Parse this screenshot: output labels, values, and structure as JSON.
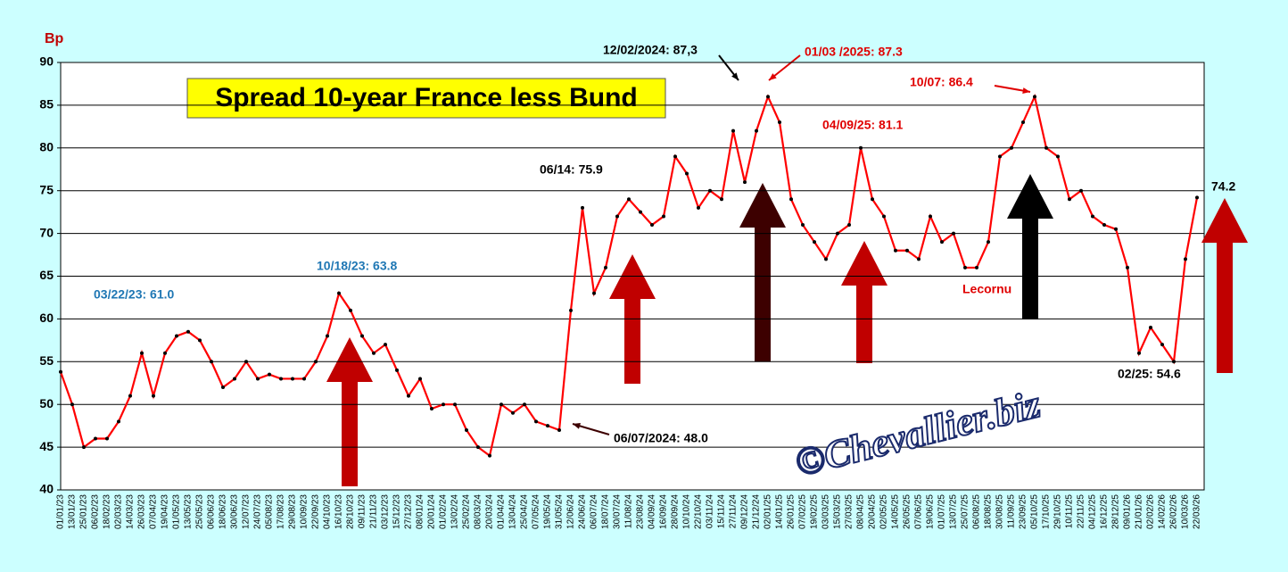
{
  "chart_data": {
    "type": "line",
    "title": "Spread 10-year France less Bund",
    "y_label": "Bp",
    "watermark": "©Chevallier.biz",
    "categories": [
      "01/01/23",
      "13/01/23",
      "25/01/23",
      "06/02/23",
      "18/02/23",
      "02/03/23",
      "14/03/23",
      "26/03/23",
      "07/04/23",
      "19/04/23",
      "01/05/23",
      "13/05/23",
      "25/05/23",
      "06/06/23",
      "18/06/23",
      "30/06/23",
      "12/07/23",
      "24/07/23",
      "05/08/23",
      "17/08/23",
      "29/08/23",
      "10/09/23",
      "22/09/23",
      "04/10/23",
      "16/10/23",
      "28/10/23",
      "09/11/23",
      "21/11/23",
      "03/12/23",
      "15/12/23",
      "27/12/23",
      "08/01/24",
      "20/01/24",
      "01/02/24",
      "13/02/24",
      "25/02/24",
      "08/03/24",
      "20/03/24",
      "01/04/24",
      "13/04/24",
      "25/04/24",
      "07/05/24",
      "19/05/24",
      "31/05/24",
      "12/06/24",
      "24/06/24",
      "06/07/24",
      "18/07/24",
      "30/07/24",
      "11/08/24",
      "23/08/24",
      "04/09/24",
      "16/09/24",
      "28/09/24",
      "10/10/24",
      "22/10/24",
      "03/11/24",
      "15/11/24",
      "27/11/24",
      "09/12/24",
      "21/12/24",
      "02/01/25",
      "14/01/25",
      "26/01/25",
      "07/02/25",
      "19/02/25",
      "03/03/25",
      "15/03/25",
      "27/03/25",
      "08/04/25",
      "20/04/25",
      "02/05/25",
      "14/05/25",
      "26/05/25",
      "07/06/25",
      "19/06/25",
      "01/07/25",
      "13/07/25",
      "25/07/25",
      "06/08/25",
      "18/08/25",
      "30/08/25",
      "11/09/25",
      "23/09/25",
      "05/10/25",
      "17/10/25",
      "29/10/25",
      "10/11/25",
      "22/11/25",
      "04/12/25",
      "16/12/25",
      "28/12/25",
      "09/01/26",
      "21/01/26",
      "02/02/26",
      "14/02/26",
      "26/02/26",
      "10/03/26",
      "22/03/26"
    ],
    "series": [
      {
        "name": "Spread",
        "color": "#ff0000",
        "marker_color": "#000000",
        "values": [
          53.8,
          50,
          45,
          46,
          46,
          48,
          51,
          56,
          51,
          56,
          58,
          58.5,
          57.5,
          55,
          52,
          53,
          55,
          53,
          53.5,
          53,
          53,
          53,
          55,
          58,
          63,
          61,
          58,
          56,
          57,
          54,
          51,
          53,
          49.5,
          50,
          50,
          47,
          45,
          44,
          50,
          49,
          50,
          48,
          47.5,
          47,
          61,
          73,
          63,
          66,
          72,
          74,
          72.5,
          71,
          72,
          79,
          77,
          73,
          75,
          74,
          82,
          76,
          82,
          86,
          83,
          74,
          71,
          69,
          67,
          70,
          71,
          80,
          74,
          72,
          68,
          68,
          67,
          72,
          69,
          70,
          66,
          66,
          69,
          79,
          80,
          83,
          86,
          80,
          79,
          74,
          75,
          72,
          71,
          70.5,
          66,
          56,
          59,
          57,
          55,
          67,
          74.2
        ]
      }
    ],
    "ylim": [
      40,
      90
    ],
    "yticks": [
      40,
      45,
      50,
      55,
      60,
      65,
      70,
      75,
      80,
      85,
      90
    ],
    "grid": true,
    "annotations": [
      {
        "text": "03/22/23: 61.0",
        "color": "#1f77b4"
      },
      {
        "text": "10/18/23: 63.8",
        "color": "#1f77b4"
      },
      {
        "text": "06/07/2024: 48.0",
        "color": "#000000"
      },
      {
        "text": "06/14: 75.9",
        "color": "#000000"
      },
      {
        "text": "12/02/2024: 87,3",
        "color": "#000000"
      },
      {
        "text": "01/03 /2025: 87.3",
        "color": "#e00000"
      },
      {
        "text": "04/09/25: 81.1",
        "color": "#e00000"
      },
      {
        "text": "10/07: 86.4",
        "color": "#e00000"
      },
      {
        "text": "Lecornu",
        "color": "#e00000"
      },
      {
        "text": "02/25: 54.6",
        "color": "#000000"
      },
      {
        "text": "74.2",
        "color": "#000000"
      }
    ]
  }
}
